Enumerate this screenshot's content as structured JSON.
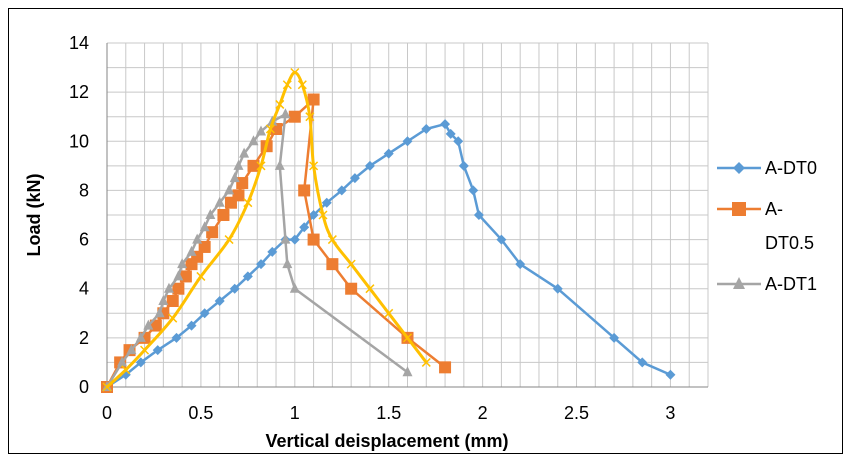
{
  "chart_data": {
    "type": "line",
    "xlabel": "Vertical deisplacement (mm)",
    "ylabel": "Load (kN)",
    "xlim": [
      0,
      3.2
    ],
    "ylim": [
      0,
      14
    ],
    "x_ticks": [
      "0",
      "0.5",
      "1",
      "1.5",
      "2",
      "2.5",
      "3"
    ],
    "y_ticks": [
      "0",
      "2",
      "4",
      "6",
      "8",
      "10",
      "12",
      "14"
    ],
    "grid": true,
    "legend_position": "right",
    "series": [
      {
        "name": "A-DT0",
        "legend_lines": [
          "A-DT0"
        ],
        "color": "#5B9BD5",
        "marker": "diamond",
        "smooth": false,
        "points": [
          [
            0,
            0
          ],
          [
            0.1,
            0.5
          ],
          [
            0.18,
            1
          ],
          [
            0.27,
            1.5
          ],
          [
            0.37,
            2
          ],
          [
            0.45,
            2.5
          ],
          [
            0.52,
            3
          ],
          [
            0.6,
            3.5
          ],
          [
            0.68,
            4
          ],
          [
            0.75,
            4.5
          ],
          [
            0.82,
            5
          ],
          [
            0.88,
            5.5
          ],
          [
            0.95,
            6
          ],
          [
            1.0,
            6
          ],
          [
            1.05,
            6.5
          ],
          [
            1.1,
            7
          ],
          [
            1.17,
            7.5
          ],
          [
            1.25,
            8
          ],
          [
            1.32,
            8.5
          ],
          [
            1.4,
            9
          ],
          [
            1.5,
            9.5
          ],
          [
            1.6,
            10
          ],
          [
            1.7,
            10.5
          ],
          [
            1.8,
            10.7
          ],
          [
            1.83,
            10.3
          ],
          [
            1.87,
            10
          ],
          [
            1.9,
            9
          ],
          [
            1.95,
            8
          ],
          [
            1.98,
            7
          ],
          [
            2.1,
            6
          ],
          [
            2.2,
            5
          ],
          [
            2.4,
            4
          ],
          [
            2.7,
            2
          ],
          [
            2.85,
            1
          ],
          [
            3.0,
            0.5
          ]
        ]
      },
      {
        "name": "A-DT0.5",
        "legend_lines": [
          "A-",
          "DT0.5"
        ],
        "color": "#ED7D31",
        "marker": "square",
        "smooth": false,
        "points": [
          [
            0,
            0
          ],
          [
            0.07,
            1
          ],
          [
            0.12,
            1.5
          ],
          [
            0.2,
            2
          ],
          [
            0.26,
            2.5
          ],
          [
            0.3,
            3
          ],
          [
            0.35,
            3.5
          ],
          [
            0.38,
            4
          ],
          [
            0.42,
            4.5
          ],
          [
            0.45,
            5
          ],
          [
            0.48,
            5.3
          ],
          [
            0.52,
            5.7
          ],
          [
            0.56,
            6.3
          ],
          [
            0.62,
            7
          ],
          [
            0.66,
            7.5
          ],
          [
            0.7,
            7.8
          ],
          [
            0.72,
            8.3
          ],
          [
            0.78,
            9
          ],
          [
            0.85,
            9.8
          ],
          [
            0.9,
            10.5
          ],
          [
            1.0,
            11
          ],
          [
            1.1,
            11.7
          ],
          [
            1.05,
            8
          ],
          [
            1.1,
            6
          ],
          [
            1.2,
            5
          ],
          [
            1.3,
            4
          ],
          [
            1.6,
            2
          ],
          [
            1.8,
            0.8
          ]
        ]
      },
      {
        "name": "A-DT1",
        "legend_lines": [
          "A-DT1"
        ],
        "color": "#A5A5A5",
        "marker": "triangle",
        "smooth": false,
        "points": [
          [
            0,
            0
          ],
          [
            0.08,
            1
          ],
          [
            0.13,
            1.5
          ],
          [
            0.18,
            2
          ],
          [
            0.22,
            2.5
          ],
          [
            0.28,
            3
          ],
          [
            0.3,
            3.5
          ],
          [
            0.33,
            4
          ],
          [
            0.38,
            4.5
          ],
          [
            0.4,
            5
          ],
          [
            0.45,
            5.5
          ],
          [
            0.48,
            6
          ],
          [
            0.52,
            6.5
          ],
          [
            0.55,
            7
          ],
          [
            0.6,
            7.5
          ],
          [
            0.65,
            8
          ],
          [
            0.68,
            8.5
          ],
          [
            0.7,
            9
          ],
          [
            0.73,
            9.5
          ],
          [
            0.78,
            10
          ],
          [
            0.82,
            10.4
          ],
          [
            0.88,
            10.8
          ],
          [
            0.95,
            11.1
          ],
          [
            0.92,
            9
          ],
          [
            0.95,
            6
          ],
          [
            0.96,
            5
          ],
          [
            1.0,
            4
          ],
          [
            1.6,
            0.6
          ]
        ]
      },
      {
        "name": "",
        "legend_lines": [],
        "color": "#FFC000",
        "marker": "x",
        "smooth": true,
        "points": [
          [
            0,
            0
          ],
          [
            0.1,
            0.7
          ],
          [
            0.2,
            1.5
          ],
          [
            0.35,
            2.8
          ],
          [
            0.5,
            4.5
          ],
          [
            0.65,
            6
          ],
          [
            0.75,
            7.5
          ],
          [
            0.82,
            9
          ],
          [
            0.87,
            10.5
          ],
          [
            0.92,
            11.5
          ],
          [
            0.96,
            12.3
          ],
          [
            1.0,
            12.8
          ],
          [
            1.04,
            12.3
          ],
          [
            1.08,
            11
          ],
          [
            1.1,
            9
          ],
          [
            1.15,
            7
          ],
          [
            1.2,
            6
          ],
          [
            1.3,
            5
          ],
          [
            1.4,
            4
          ],
          [
            1.5,
            3
          ],
          [
            1.6,
            2
          ],
          [
            1.7,
            1
          ]
        ]
      }
    ]
  }
}
